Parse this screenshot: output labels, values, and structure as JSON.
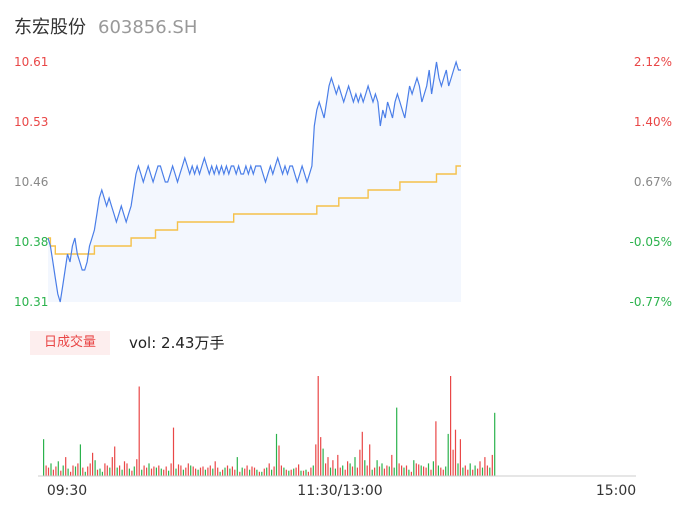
{
  "header": {
    "name": "东宏股份",
    "code": "603856.SH"
  },
  "volume_header": {
    "badge": "日成交量",
    "vol_label": "vol: 2.43万手"
  },
  "colors": {
    "price_line": "#4a7ee8",
    "avg_line": "#f5c14a",
    "up": "#e94747",
    "down": "#2bb24c",
    "axis_text": "#888888"
  },
  "chart_data": [
    {
      "type": "line",
      "title": "",
      "y_ticks_left": [
        "10.61",
        "10.53",
        "10.46",
        "10.38",
        "10.31"
      ],
      "y_ticks_right": [
        "2.12%",
        "1.40%",
        "0.67%",
        "-0.05%",
        "-0.77%"
      ],
      "ylim": [
        10.31,
        10.61
      ],
      "x_ticks": [
        "09:30",
        "11:30/13:00",
        "15:00"
      ],
      "series": [
        {
          "role": "price",
          "values": [
            10.39,
            10.38,
            10.36,
            10.34,
            10.32,
            10.31,
            10.33,
            10.35,
            10.37,
            10.36,
            10.38,
            10.39,
            10.37,
            10.36,
            10.35,
            10.35,
            10.36,
            10.38,
            10.39,
            10.4,
            10.42,
            10.44,
            10.45,
            10.44,
            10.43,
            10.44,
            10.43,
            10.42,
            10.41,
            10.42,
            10.43,
            10.42,
            10.41,
            10.42,
            10.43,
            10.45,
            10.47,
            10.48,
            10.47,
            10.46,
            10.47,
            10.48,
            10.47,
            10.46,
            10.47,
            10.48,
            10.48,
            10.47,
            10.46,
            10.46,
            10.47,
            10.48,
            10.47,
            10.46,
            10.47,
            10.48,
            10.49,
            10.48,
            10.47,
            10.48,
            10.47,
            10.48,
            10.47,
            10.48,
            10.49,
            10.48,
            10.47,
            10.48,
            10.47,
            10.48,
            10.47,
            10.48,
            10.47,
            10.48,
            10.47,
            10.48,
            10.48,
            10.47,
            10.48,
            10.47,
            10.47,
            10.48,
            10.47,
            10.48,
            10.47,
            10.48,
            10.48,
            10.48,
            10.47,
            10.46,
            10.47,
            10.48,
            10.47,
            10.48,
            10.49,
            10.48,
            10.47,
            10.48,
            10.47,
            10.48,
            10.48,
            10.47,
            10.46,
            10.47,
            10.48,
            10.47,
            10.46,
            10.47,
            10.48,
            10.53,
            10.55,
            10.56,
            10.55,
            10.54,
            10.56,
            10.58,
            10.59,
            10.58,
            10.57,
            10.58,
            10.57,
            10.56,
            10.57,
            10.58,
            10.57,
            10.56,
            10.57,
            10.56,
            10.57,
            10.56,
            10.57,
            10.58,
            10.57,
            10.56,
            10.57,
            10.56,
            10.53,
            10.55,
            10.54,
            10.56,
            10.55,
            10.54,
            10.56,
            10.57,
            10.56,
            10.55,
            10.54,
            10.56,
            10.58,
            10.57,
            10.58,
            10.59,
            10.58,
            10.56,
            10.57,
            10.58,
            10.6,
            10.57,
            10.59,
            10.61,
            10.59,
            10.58,
            10.59,
            10.6,
            10.58,
            10.59,
            10.6,
            10.61,
            10.6,
            10.6
          ]
        },
        {
          "role": "average",
          "values": [
            10.39,
            10.38,
            10.38,
            10.37,
            10.37,
            10.37,
            10.37,
            10.37,
            10.37,
            10.37,
            10.37,
            10.37,
            10.37,
            10.37,
            10.37,
            10.37,
            10.37,
            10.37,
            10.37,
            10.38,
            10.38,
            10.38,
            10.38,
            10.38,
            10.38,
            10.38,
            10.38,
            10.38,
            10.38,
            10.38,
            10.38,
            10.38,
            10.38,
            10.38,
            10.39,
            10.39,
            10.39,
            10.39,
            10.39,
            10.39,
            10.39,
            10.39,
            10.39,
            10.39,
            10.4,
            10.4,
            10.4,
            10.4,
            10.4,
            10.4,
            10.4,
            10.4,
            10.4,
            10.41,
            10.41,
            10.41,
            10.41,
            10.41,
            10.41,
            10.41,
            10.41,
            10.41,
            10.41,
            10.41,
            10.41,
            10.41,
            10.41,
            10.41,
            10.41,
            10.41,
            10.41,
            10.41,
            10.41,
            10.41,
            10.41,
            10.41,
            10.42,
            10.42,
            10.42,
            10.42,
            10.42,
            10.42,
            10.42,
            10.42,
            10.42,
            10.42,
            10.42,
            10.42,
            10.42,
            10.42,
            10.42,
            10.42,
            10.42,
            10.42,
            10.42,
            10.42,
            10.42,
            10.42,
            10.42,
            10.42,
            10.42,
            10.42,
            10.42,
            10.42,
            10.42,
            10.42,
            10.42,
            10.42,
            10.42,
            10.42,
            10.43,
            10.43,
            10.43,
            10.43,
            10.43,
            10.43,
            10.43,
            10.43,
            10.43,
            10.44,
            10.44,
            10.44,
            10.44,
            10.44,
            10.44,
            10.44,
            10.44,
            10.44,
            10.44,
            10.44,
            10.44,
            10.45,
            10.45,
            10.45,
            10.45,
            10.45,
            10.45,
            10.45,
            10.45,
            10.45,
            10.45,
            10.45,
            10.45,
            10.45,
            10.46,
            10.46,
            10.46,
            10.46,
            10.46,
            10.46,
            10.46,
            10.46,
            10.46,
            10.46,
            10.46,
            10.46,
            10.46,
            10.46,
            10.46,
            10.47,
            10.47,
            10.47,
            10.47,
            10.47,
            10.47,
            10.47,
            10.47,
            10.48,
            10.48,
            10.48
          ]
        }
      ]
    },
    {
      "type": "bar",
      "title": "",
      "values": [
        35,
        10,
        8,
        12,
        6,
        9,
        14,
        5,
        10,
        18,
        7,
        4,
        10,
        9,
        12,
        30,
        8,
        4,
        9,
        12,
        22,
        15,
        6,
        7,
        4,
        12,
        10,
        8,
        18,
        28,
        8,
        10,
        6,
        14,
        12,
        7,
        5,
        9,
        16,
        85,
        6,
        10,
        8,
        12,
        7,
        9,
        8,
        10,
        7,
        6,
        9,
        5,
        12,
        46,
        7,
        11,
        10,
        6,
        8,
        12,
        10,
        9,
        7,
        6,
        8,
        9,
        6,
        8,
        10,
        7,
        14,
        8,
        4,
        6,
        8,
        10,
        7,
        9,
        6,
        18,
        4,
        8,
        7,
        10,
        6,
        9,
        8,
        6,
        4,
        4,
        7,
        8,
        12,
        6,
        9,
        40,
        29,
        10,
        8,
        6,
        5,
        6,
        7,
        8,
        11,
        5,
        5,
        6,
        4,
        8,
        10,
        30,
        95,
        37,
        26,
        12,
        18,
        8,
        15,
        7,
        20,
        8,
        10,
        6,
        14,
        12,
        9,
        18,
        8,
        25,
        42,
        15,
        10,
        30,
        6,
        8,
        15,
        9,
        12,
        7,
        10,
        9,
        20,
        8,
        65,
        12,
        10,
        8,
        10,
        6,
        4,
        15,
        12,
        11,
        10,
        9,
        8,
        12,
        6,
        14,
        52,
        10,
        8,
        6,
        9,
        40,
        95,
        25,
        44,
        12,
        35,
        8,
        10,
        6,
        12,
        6,
        10,
        7,
        14,
        8,
        18,
        10,
        8,
        20,
        60
      ],
      "directions": [
        "down",
        "up",
        "up",
        "down",
        "up",
        "up",
        "down",
        "up",
        "down",
        "up",
        "down",
        "up",
        "up",
        "down",
        "up",
        "down",
        "up",
        "down",
        "up",
        "up",
        "up",
        "down",
        "up",
        "down",
        "down",
        "up",
        "up",
        "down",
        "up",
        "up",
        "down",
        "up",
        "down",
        "up",
        "up",
        "down",
        "up",
        "down",
        "up",
        "up",
        "down",
        "up",
        "up",
        "down",
        "up",
        "up",
        "down",
        "up",
        "down",
        "up",
        "up",
        "down",
        "up",
        "up",
        "down",
        "up",
        "up",
        "down",
        "up",
        "up",
        "down",
        "up",
        "up",
        "down",
        "up",
        "up",
        "down",
        "up",
        "up",
        "down",
        "up",
        "up",
        "down",
        "up",
        "down",
        "up",
        "down",
        "up",
        "up",
        "down",
        "up",
        "down",
        "up",
        "up",
        "down",
        "up",
        "up",
        "down",
        "up",
        "down",
        "up",
        "down",
        "up",
        "down",
        "up",
        "down",
        "up",
        "up",
        "down",
        "up",
        "down",
        "up",
        "down",
        "up",
        "up",
        "down",
        "up",
        "down",
        "up",
        "up",
        "down",
        "up",
        "up",
        "up",
        "down",
        "up",
        "up",
        "down",
        "up",
        "down",
        "up",
        "up",
        "down",
        "up",
        "up",
        "down",
        "up",
        "down",
        "up",
        "up",
        "up",
        "down",
        "up",
        "up",
        "down",
        "up",
        "down",
        "up",
        "down",
        "up",
        "up",
        "down",
        "up",
        "down",
        "down",
        "up",
        "up",
        "down",
        "up",
        "down",
        "up",
        "down",
        "up",
        "up",
        "down",
        "up",
        "up",
        "down",
        "up",
        "down",
        "up",
        "down",
        "up",
        "up",
        "down",
        "down",
        "up",
        "up",
        "up",
        "down",
        "up",
        "down",
        "up",
        "up",
        "down",
        "up",
        "down",
        "up",
        "up",
        "down",
        "up",
        "up",
        "down",
        "up",
        "down"
      ]
    }
  ]
}
